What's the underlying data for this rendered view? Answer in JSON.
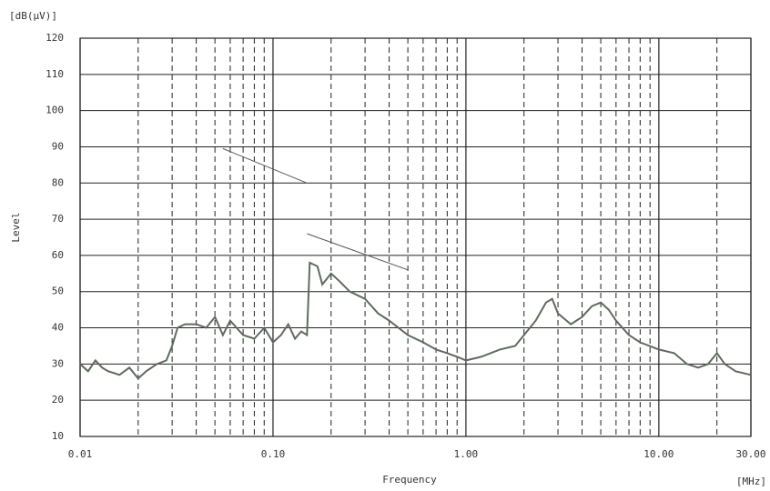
{
  "chart_data": {
    "type": "line",
    "y_unit": "[dB(µV)]",
    "y_label": "Level",
    "x_label": "Frequency",
    "x_unit": "[MHz]",
    "log_x": true,
    "grid": true,
    "xlim": [
      0.01,
      30
    ],
    "ylim": [
      10,
      120
    ],
    "xticks": [
      0.01,
      {
        "value": 0.1,
        "label": "0.10"
      },
      {
        "value": 1,
        "label": "1.00"
      },
      {
        "value": 10,
        "label": "10.00"
      },
      {
        "value": 30,
        "label": "30.00"
      }
    ],
    "xminor": [
      0.02,
      0.03,
      0.04,
      0.05,
      0.06,
      0.07,
      0.08,
      0.09,
      0.2,
      0.3,
      0.4,
      0.5,
      0.6,
      0.7,
      0.8,
      0.9,
      2,
      3,
      4,
      5,
      6,
      7,
      8,
      9,
      20
    ],
    "yticks": [
      10,
      20,
      30,
      40,
      50,
      60,
      70,
      80,
      90,
      100,
      110,
      120
    ],
    "series": [
      {
        "color": "#5f6b5f",
        "x": [
          0.01,
          0.011,
          0.012,
          0.013,
          0.014,
          0.016,
          0.018,
          0.02,
          0.022,
          0.025,
          0.028,
          0.03,
          0.032,
          0.035,
          0.04,
          0.045,
          0.05,
          0.055,
          0.06,
          0.07,
          0.08,
          0.09,
          0.1,
          0.11,
          0.12,
          0.13,
          0.14,
          0.15,
          0.155,
          0.17,
          0.18,
          0.2,
          0.22,
          0.25,
          0.3,
          0.35,
          0.4,
          0.5,
          0.6,
          0.7,
          0.8,
          0.9,
          1.0,
          1.2,
          1.5,
          1.8,
          2.0,
          2.3,
          2.6,
          2.8,
          3.0,
          3.5,
          4.0,
          4.5,
          5.0,
          5.5,
          6,
          7,
          8,
          10,
          12,
          14,
          16,
          18,
          20,
          22,
          25,
          30
        ],
        "values": [
          30,
          28,
          31,
          29,
          28,
          27,
          29,
          26,
          28,
          30,
          31,
          35,
          40,
          41,
          41,
          40,
          43,
          38,
          42,
          38,
          37,
          40,
          36,
          38,
          41,
          37,
          39,
          38,
          58,
          57,
          52,
          55,
          53,
          50,
          48,
          44,
          42,
          38,
          36,
          34,
          33,
          32,
          31,
          32,
          34,
          35,
          38,
          42,
          47,
          48,
          44,
          41,
          43,
          46,
          47,
          45,
          42,
          38,
          36,
          34,
          33,
          30,
          29,
          30,
          33,
          30,
          28,
          27
        ]
      },
      {
        "color": "#555555",
        "x": [
          0.055,
          0.15
        ],
        "values": [
          89.5,
          80
        ]
      },
      {
        "color": "#555555",
        "x": [
          0.15,
          0.5
        ],
        "values": [
          66,
          56
        ]
      }
    ]
  }
}
